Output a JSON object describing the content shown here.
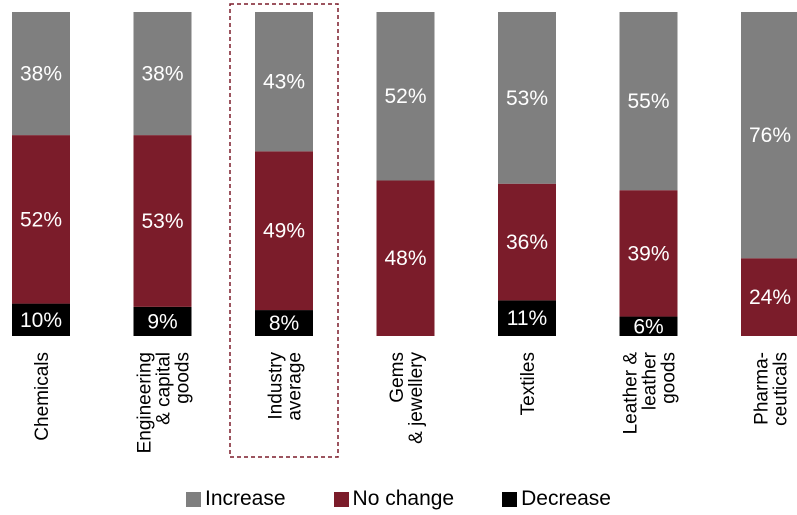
{
  "chart_data": {
    "type": "bar",
    "stacked": true,
    "orientation": "vertical",
    "categories": [
      [
        "Chemicals"
      ],
      [
        "Engineering",
        "& capital",
        "goods"
      ],
      [
        "Industry",
        "average"
      ],
      [
        "Gems",
        "& jewellery"
      ],
      [
        "Textiles"
      ],
      [
        "Leather &",
        "leather",
        "goods"
      ],
      [
        "Pharma-",
        "ceuticals"
      ]
    ],
    "highlighted_category_index": 2,
    "series": [
      {
        "name": "Decrease",
        "values": [
          10,
          9,
          8,
          0,
          11,
          6,
          0
        ],
        "labels": [
          "10%",
          "9%",
          "8%",
          "",
          "11%",
          "6%",
          ""
        ],
        "color": "#000000",
        "label_color": "#ffffff"
      },
      {
        "name": "No change",
        "values": [
          52,
          53,
          49,
          48,
          36,
          39,
          24
        ],
        "labels": [
          "52%",
          "53%",
          "49%",
          "48%",
          "36%",
          "39%",
          "24%"
        ],
        "color": "#7b1c2a",
        "label_color": "#ffffff"
      },
      {
        "name": "Increase",
        "values": [
          38,
          38,
          43,
          52,
          53,
          55,
          76
        ],
        "labels": [
          "38%",
          "38%",
          "43%",
          "52%",
          "53%",
          "55%",
          "76%"
        ],
        "color": "#7f7f7f",
        "label_color": "#ffffff"
      }
    ],
    "legend_order": [
      "Increase",
      "No change",
      "Decrease"
    ],
    "legend_position": "bottom",
    "ylim": [
      0,
      100
    ],
    "grid": false,
    "highlight_color": "#7b1c2a"
  }
}
